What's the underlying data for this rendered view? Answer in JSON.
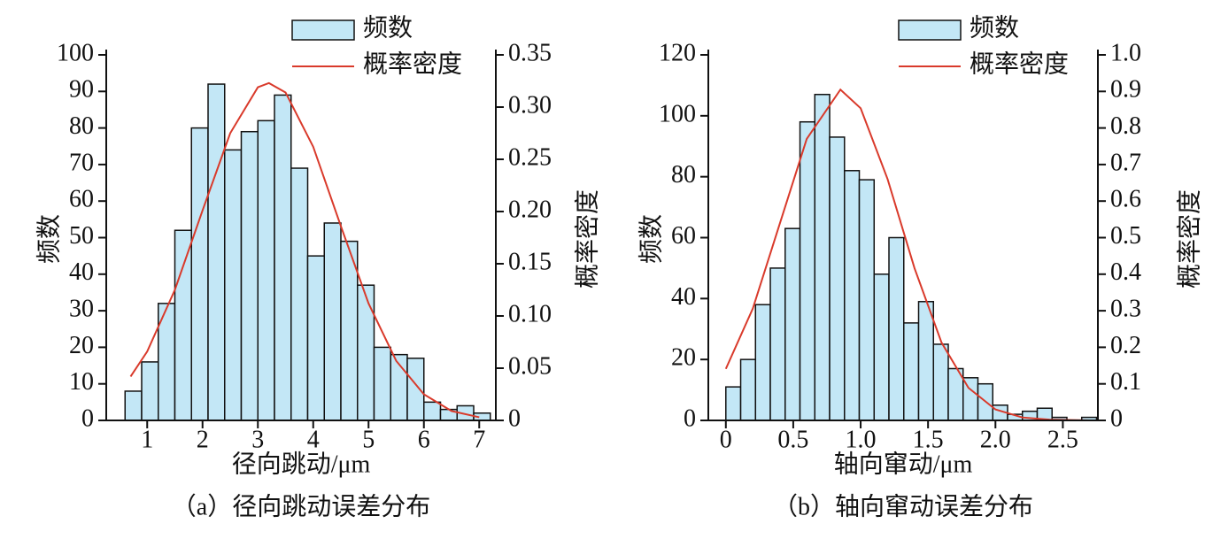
{
  "chart_data": [
    {
      "type": "histogram",
      "caption": "（a）径向跳动误差分布",
      "xlabel": "径向跳动/μm",
      "ylabel": "频数",
      "y2label": "概率密度",
      "histogram": {
        "name": "频数",
        "color": "#c3e7f6",
        "bins": [
          0.6,
          0.9,
          1.2,
          1.5,
          1.8,
          2.1,
          2.4,
          2.7,
          3.0,
          3.3,
          3.6,
          3.9,
          4.2,
          4.5,
          4.8,
          5.1,
          5.4,
          5.7,
          6.0,
          6.3,
          6.6,
          6.9,
          7.2
        ],
        "values": [
          8,
          16,
          32,
          52,
          80,
          92,
          74,
          79,
          82,
          89,
          69,
          45,
          54,
          49,
          37,
          20,
          18,
          17,
          5,
          3,
          4,
          2
        ]
      },
      "density": {
        "name": "概率密度",
        "color": "#d93a2b",
        "axis": "y2",
        "x": [
          0.7,
          1.0,
          1.5,
          2.0,
          2.5,
          3.0,
          3.2,
          3.5,
          4.0,
          4.5,
          5.0,
          5.5,
          6.0,
          6.5,
          7.0
        ],
        "values": [
          0.042,
          0.066,
          0.125,
          0.201,
          0.275,
          0.319,
          0.323,
          0.314,
          0.262,
          0.186,
          0.112,
          0.057,
          0.025,
          0.009,
          0.003
        ]
      },
      "xlim": [
        0.26,
        7.3
      ],
      "xticks": [
        1,
        2,
        3,
        4,
        5,
        6,
        7
      ],
      "ylim": [
        0,
        100
      ],
      "yticks": [
        0,
        10,
        20,
        30,
        40,
        50,
        60,
        70,
        80,
        90,
        100
      ],
      "y2lim": [
        0,
        0.35
      ],
      "y2ticks": [
        0,
        0.05,
        {
          "value": 0.1,
          "label": "0.10"
        },
        0.15,
        {
          "value": 0.2,
          "label": "0.20"
        },
        0.25,
        {
          "value": 0.3,
          "label": "0.30"
        },
        0.35
      ]
    },
    {
      "type": "histogram",
      "caption": "（b）轴向窜动误差分布",
      "xlabel": "轴向窜动/μm",
      "ylabel": "频数",
      "y2label": "概率密度",
      "histogram": {
        "name": "频数",
        "color": "#c3e7f6",
        "bins": [
          0,
          0.11,
          0.22,
          0.33,
          0.44,
          0.55,
          0.66,
          0.77,
          0.88,
          0.99,
          1.1,
          1.21,
          1.32,
          1.43,
          1.54,
          1.65,
          1.76,
          1.87,
          1.98,
          2.09,
          2.2,
          2.31,
          2.42,
          2.53,
          2.64,
          2.75
        ],
        "values": [
          11,
          20,
          38,
          50,
          63,
          98,
          107,
          93,
          82,
          79,
          48,
          60,
          32,
          39,
          25,
          17,
          14,
          12,
          5,
          2,
          3,
          4,
          1,
          0,
          1
        ]
      },
      "density": {
        "name": "概率密度",
        "color": "#d93a2b",
        "axis": "y2",
        "x": [
          0,
          0.2,
          0.4,
          0.6,
          0.85,
          1.0,
          1.2,
          1.4,
          1.6,
          1.8,
          2.0,
          2.2,
          2.4,
          2.7
        ],
        "values": [
          0.141,
          0.306,
          0.538,
          0.77,
          0.905,
          0.854,
          0.66,
          0.416,
          0.213,
          0.089,
          0.03,
          0.008,
          0.002,
          0
        ]
      },
      "xlim": [
        -0.13,
        2.76
      ],
      "xticks": [
        0,
        0.5,
        {
          "value": 1,
          "label": "1.0"
        },
        1.5,
        {
          "value": 2,
          "label": "2.0"
        },
        2.5
      ],
      "ylim": [
        0,
        120
      ],
      "yticks": [
        0,
        20,
        40,
        60,
        80,
        100,
        120
      ],
      "y2lim": [
        0,
        1
      ],
      "y2ticks": [
        0,
        0.1,
        0.2,
        0.3,
        0.4,
        0.5,
        0.6,
        0.7,
        0.8,
        0.9,
        {
          "value": 1,
          "label": "1.0"
        }
      ]
    }
  ]
}
